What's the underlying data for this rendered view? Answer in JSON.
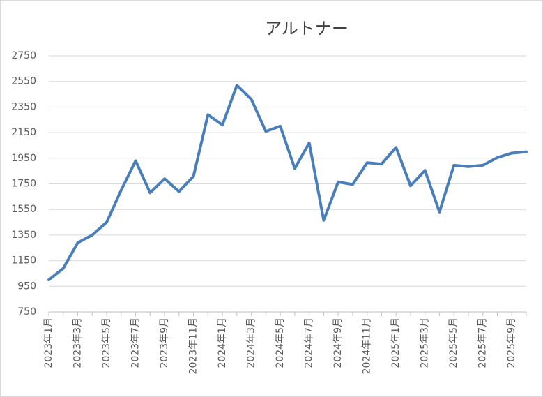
{
  "chart_data": {
    "type": "line",
    "title": "アルトナー",
    "categories": [
      "2023年1月",
      null,
      "2023年3月",
      null,
      "2023年5月",
      null,
      "2023年7月",
      null,
      "2023年9月",
      null,
      "2023年11月",
      null,
      "2024年1月",
      null,
      "2024年3月",
      null,
      "2024年5月",
      null,
      "2024年7月",
      null,
      "2024年9月",
      null,
      "2024年11月",
      null,
      "2025年1月",
      null,
      "2025年3月",
      null,
      "2025年5月",
      null,
      "2025年7月",
      null,
      "2025年9月",
      null
    ],
    "values": [
      1000,
      1090,
      1290,
      1350,
      1450,
      1700,
      1930,
      1680,
      1790,
      1690,
      1810,
      2290,
      2210,
      2520,
      2410,
      2160,
      2200,
      1870,
      2070,
      1465,
      1765,
      1745,
      1915,
      1905,
      2035,
      1735,
      1855,
      1530,
      1895,
      1885,
      1895,
      1955,
      1990,
      2000
    ],
    "color": "#4a7ebb",
    "ylim": [
      750,
      2750
    ],
    "yticks": [
      750,
      950,
      1150,
      1350,
      1550,
      1750,
      1950,
      2150,
      2350,
      2550,
      2750
    ],
    "grid": true
  }
}
